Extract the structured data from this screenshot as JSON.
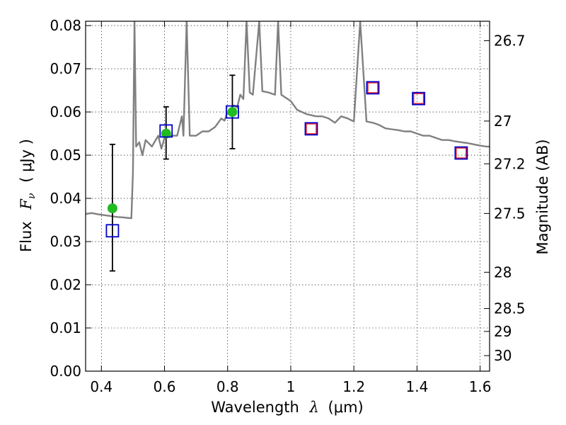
{
  "chart_data": {
    "type": "scatter",
    "x_label": "Wavelength",
    "x_label_symbol": "λ",
    "x_label_unit": "(μm)",
    "y_label": "Flux",
    "y_label_symbol": "F",
    "y_label_subscript": "ν",
    "y_label_unit": "( μJy )",
    "y2_label": "Magnitude (AB)",
    "xlim": [
      0.35,
      1.63
    ],
    "ylim": [
      0.0,
      0.081
    ],
    "x_ticks": [
      0.4,
      0.6,
      0.8,
      1.0,
      1.2,
      1.4,
      1.6
    ],
    "x_tick_labels": [
      "0.4",
      "0.6",
      "0.8",
      "1",
      "1.2",
      "1.4",
      "1.6"
    ],
    "y_ticks": [
      0.0,
      0.01,
      0.02,
      0.03,
      0.04,
      0.05,
      0.06,
      0.07,
      0.08
    ],
    "y_tick_labels": [
      "0.00",
      "0.01",
      "0.02",
      "0.03",
      "0.04",
      "0.05",
      "0.06",
      "0.07",
      "0.08"
    ],
    "y2_ticks": [
      {
        "label": "26.7",
        "flux": 0.0765
      },
      {
        "label": "27",
        "flux": 0.0579
      },
      {
        "label": "27.2",
        "flux": 0.048
      },
      {
        "label": "27.5",
        "flux": 0.0365
      },
      {
        "label": "28",
        "flux": 0.0229
      },
      {
        "label": "28.5",
        "flux": 0.0145
      },
      {
        "label": "29",
        "flux": 0.0092
      },
      {
        "label": "30",
        "flux": 0.0036
      }
    ],
    "grid": true,
    "colors": {
      "model": "#808080",
      "observed": "#22bb22",
      "model_phot": "#0000cc",
      "upper_limit_fill": "#ee2222"
    },
    "series": [
      {
        "kind": "line",
        "color": "#808080",
        "points": [
          [
            0.35,
            0.0364
          ],
          [
            0.37,
            0.0366
          ],
          [
            0.39,
            0.0363
          ],
          [
            0.41,
            0.0361
          ],
          [
            0.43,
            0.0359
          ],
          [
            0.45,
            0.0357
          ],
          [
            0.47,
            0.0356
          ],
          [
            0.48,
            0.0355
          ],
          [
            0.495,
            0.0354
          ],
          [
            0.5,
            0.046
          ],
          [
            0.505,
            0.081
          ],
          [
            0.51,
            0.052
          ],
          [
            0.52,
            0.053
          ],
          [
            0.53,
            0.05
          ],
          [
            0.54,
            0.0535
          ],
          [
            0.56,
            0.052
          ],
          [
            0.58,
            0.0545
          ],
          [
            0.59,
            0.0515
          ],
          [
            0.6,
            0.054
          ],
          [
            0.62,
            0.0545
          ],
          [
            0.64,
            0.0545
          ],
          [
            0.655,
            0.059
          ],
          [
            0.66,
            0.0545
          ],
          [
            0.67,
            0.081
          ],
          [
            0.68,
            0.0545
          ],
          [
            0.7,
            0.0545
          ],
          [
            0.72,
            0.0555
          ],
          [
            0.74,
            0.0555
          ],
          [
            0.76,
            0.0565
          ],
          [
            0.78,
            0.0585
          ],
          [
            0.79,
            0.058
          ],
          [
            0.8,
            0.06
          ],
          [
            0.82,
            0.0615
          ],
          [
            0.83,
            0.061
          ],
          [
            0.84,
            0.064
          ],
          [
            0.85,
            0.063
          ],
          [
            0.86,
            0.081
          ],
          [
            0.87,
            0.0645
          ],
          [
            0.88,
            0.064
          ],
          [
            0.9,
            0.081
          ],
          [
            0.91,
            0.0648
          ],
          [
            0.93,
            0.0645
          ],
          [
            0.95,
            0.064
          ],
          [
            0.96,
            0.081
          ],
          [
            0.97,
            0.064
          ],
          [
            1.0,
            0.0625
          ],
          [
            1.02,
            0.0605
          ],
          [
            1.05,
            0.0595
          ],
          [
            1.08,
            0.059
          ],
          [
            1.1,
            0.059
          ],
          [
            1.12,
            0.0585
          ],
          [
            1.14,
            0.0575
          ],
          [
            1.16,
            0.059
          ],
          [
            1.18,
            0.0585
          ],
          [
            1.2,
            0.0578
          ],
          [
            1.22,
            0.081
          ],
          [
            1.24,
            0.0578
          ],
          [
            1.26,
            0.0575
          ],
          [
            1.28,
            0.057
          ],
          [
            1.3,
            0.0562
          ],
          [
            1.32,
            0.056
          ],
          [
            1.34,
            0.0558
          ],
          [
            1.36,
            0.0555
          ],
          [
            1.38,
            0.0555
          ],
          [
            1.4,
            0.055
          ],
          [
            1.42,
            0.0545
          ],
          [
            1.44,
            0.0545
          ],
          [
            1.46,
            0.054
          ],
          [
            1.48,
            0.0535
          ],
          [
            1.5,
            0.0535
          ],
          [
            1.52,
            0.0532
          ],
          [
            1.54,
            0.053
          ],
          [
            1.56,
            0.0528
          ],
          [
            1.58,
            0.0525
          ],
          [
            1.6,
            0.0522
          ],
          [
            1.62,
            0.052
          ],
          [
            1.63,
            0.052
          ]
        ]
      },
      {
        "kind": "errorbar-points",
        "color": "#22bb22",
        "points": [
          {
            "x": 0.435,
            "y": 0.0377,
            "ylow": 0.0232,
            "yhigh": 0.0525
          },
          {
            "x": 0.605,
            "y": 0.055,
            "ylow": 0.0491,
            "yhigh": 0.0612
          },
          {
            "x": 0.815,
            "y": 0.06,
            "ylow": 0.0515,
            "yhigh": 0.0685
          }
        ]
      },
      {
        "kind": "open-squares",
        "color": "#0000cc",
        "points": [
          {
            "x": 0.435,
            "y": 0.0325,
            "filled": false
          },
          {
            "x": 0.605,
            "y": 0.0556,
            "filled": false
          },
          {
            "x": 0.815,
            "y": 0.06,
            "filled": false
          },
          {
            "x": 1.065,
            "y": 0.0561,
            "filled": true
          },
          {
            "x": 1.26,
            "y": 0.0656,
            "filled": true
          },
          {
            "x": 1.405,
            "y": 0.0631,
            "filled": true
          },
          {
            "x": 1.54,
            "y": 0.0505,
            "filled": true
          }
        ]
      }
    ]
  }
}
